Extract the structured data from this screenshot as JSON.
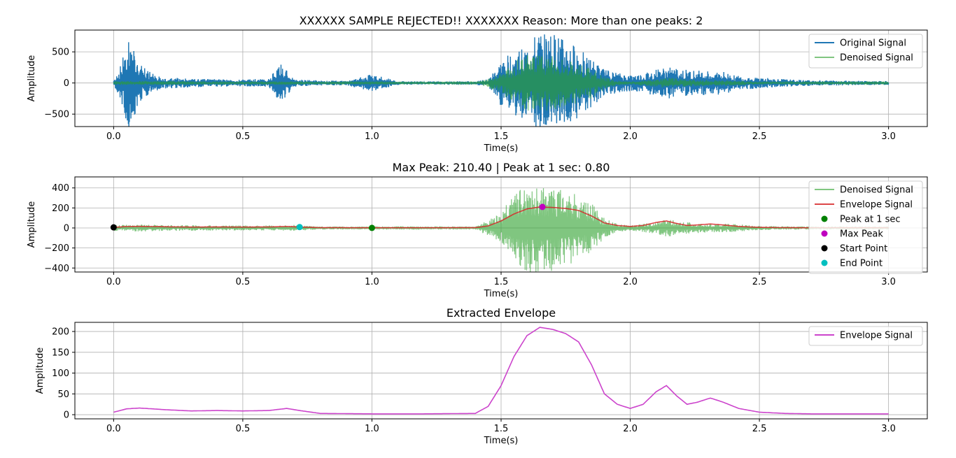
{
  "chart_data": [
    {
      "type": "line",
      "title": "XXXXXX SAMPLE REJECTED!! XXXXXXX Reason: More than one peaks: 2",
      "xlabel": "Time(s)",
      "ylabel": "Amplitude",
      "xlim": [
        -0.15,
        3.15
      ],
      "ylim": [
        -700,
        850
      ],
      "xticks": [
        0.0,
        0.5,
        1.0,
        1.5,
        2.0,
        2.5,
        3.0
      ],
      "xtick_labels": [
        "0.0",
        "0.5",
        "1.0",
        "1.5",
        "2.0",
        "2.5",
        "3.0"
      ],
      "yticks": [
        -500,
        0,
        500
      ],
      "ytick_labels": [
        "−500",
        "0",
        "500"
      ],
      "grid": true,
      "legend": "upper right",
      "series": [
        {
          "name": "Original Signal",
          "color": "#1f77b4",
          "style": "dense oscillation",
          "x": [
            0.0,
            0.02,
            0.04,
            0.06,
            0.08,
            0.1,
            0.15,
            0.2,
            0.3,
            0.4,
            0.5,
            0.6,
            0.65,
            0.7,
            0.8,
            0.9,
            1.0,
            1.1,
            1.2,
            1.3,
            1.4,
            1.45,
            1.5,
            1.55,
            1.6,
            1.65,
            1.7,
            1.75,
            1.8,
            1.85,
            1.9,
            1.95,
            2.0,
            2.05,
            2.1,
            2.15,
            2.2,
            2.25,
            2.3,
            2.35,
            2.4,
            2.45,
            2.5,
            2.6,
            2.7,
            2.8,
            2.9,
            3.0
          ],
          "envelope": [
            80,
            200,
            500,
            730,
            600,
            300,
            150,
            90,
            70,
            60,
            55,
            70,
            330,
            60,
            40,
            35,
            140,
            30,
            25,
            25,
            30,
            60,
            370,
            520,
            600,
            840,
            800,
            700,
            560,
            380,
            220,
            160,
            130,
            150,
            220,
            260,
            220,
            200,
            200,
            200,
            130,
            100,
            90,
            60,
            45,
            40,
            35,
            30
          ]
        },
        {
          "name": "Denoised Signal",
          "color": "#2ca02c",
          "style": "dense oscillation",
          "x": [
            0.0,
            0.1,
            0.2,
            0.4,
            0.6,
            0.7,
            0.8,
            1.0,
            1.2,
            1.4,
            1.5,
            1.55,
            1.6,
            1.65,
            1.7,
            1.75,
            1.8,
            1.85,
            1.9,
            1.95,
            2.0,
            2.1,
            2.15,
            2.2,
            2.3,
            2.4,
            2.5,
            2.7,
            2.9,
            3.0
          ],
          "envelope": [
            30,
            35,
            30,
            25,
            25,
            30,
            15,
            10,
            8,
            12,
            150,
            350,
            460,
            470,
            430,
            380,
            320,
            250,
            100,
            40,
            25,
            60,
            90,
            60,
            45,
            40,
            20,
            15,
            12,
            10
          ]
        }
      ]
    },
    {
      "type": "line",
      "title": "Max Peak: 210.40 | Peak at 1 sec: 0.80",
      "xlabel": "Time(s)",
      "ylabel": "Amplitude",
      "xlim": [
        -0.15,
        3.15
      ],
      "ylim": [
        -440,
        510
      ],
      "xticks": [
        0.0,
        0.5,
        1.0,
        1.5,
        2.0,
        2.5,
        3.0
      ],
      "xtick_labels": [
        "0.0",
        "0.5",
        "1.0",
        "1.5",
        "2.0",
        "2.5",
        "3.0"
      ],
      "yticks": [
        -400,
        -200,
        0,
        200,
        400
      ],
      "ytick_labels": [
        "−400",
        "−200",
        "0",
        "200",
        "400"
      ],
      "grid": true,
      "legend": "upper right",
      "series": [
        {
          "name": "Denoised Signal",
          "color": "#2ca02c",
          "style": "dense oscillation",
          "x": [
            0.0,
            0.1,
            0.2,
            0.4,
            0.6,
            0.7,
            0.8,
            1.0,
            1.2,
            1.4,
            1.5,
            1.55,
            1.6,
            1.65,
            1.7,
            1.75,
            1.8,
            1.85,
            1.9,
            1.95,
            2.0,
            2.1,
            2.15,
            2.2,
            2.3,
            2.4,
            2.5,
            2.7,
            2.9,
            3.0
          ],
          "envelope": [
            30,
            35,
            30,
            25,
            25,
            30,
            15,
            10,
            8,
            12,
            150,
            350,
            460,
            470,
            430,
            380,
            320,
            250,
            100,
            40,
            25,
            60,
            90,
            60,
            45,
            40,
            20,
            15,
            12,
            10
          ]
        },
        {
          "name": "Envelope Signal",
          "color": "#d62728",
          "style": "line",
          "x": [
            0.0,
            0.05,
            0.1,
            0.2,
            0.3,
            0.4,
            0.5,
            0.6,
            0.67,
            0.72,
            0.8,
            1.0,
            1.2,
            1.4,
            1.45,
            1.5,
            1.55,
            1.6,
            1.65,
            1.7,
            1.75,
            1.8,
            1.85,
            1.9,
            1.95,
            2.0,
            2.05,
            2.1,
            2.14,
            2.18,
            2.22,
            2.26,
            2.31,
            2.36,
            2.42,
            2.5,
            2.6,
            2.7,
            2.8,
            3.0
          ],
          "y": [
            6,
            14,
            16,
            12,
            9,
            10,
            9,
            10,
            15,
            10,
            3,
            2,
            2,
            3,
            20,
            70,
            140,
            190,
            210,
            205,
            195,
            175,
            120,
            50,
            25,
            15,
            25,
            55,
            70,
            45,
            25,
            30,
            40,
            30,
            15,
            6,
            3,
            2,
            2,
            2
          ]
        }
      ],
      "markers": [
        {
          "name": "Peak at 1 sec",
          "color": "#008000",
          "x": 1.0,
          "y": 0.8
        },
        {
          "name": "Max Peak",
          "color": "#bf00bf",
          "x": 1.66,
          "y": 210.4
        },
        {
          "name": "Start Point",
          "color": "#000000",
          "x": 0.0,
          "y": 6
        },
        {
          "name": "End Point",
          "color": "#00bfbf",
          "x": 0.72,
          "y": 9
        }
      ]
    },
    {
      "type": "line",
      "title": "Extracted Envelope",
      "xlabel": "Time(s)",
      "ylabel": "Amplitude",
      "xlim": [
        -0.15,
        3.15
      ],
      "ylim": [
        -10,
        222
      ],
      "xticks": [
        0.0,
        0.5,
        1.0,
        1.5,
        2.0,
        2.5,
        3.0
      ],
      "xtick_labels": [
        "0.0",
        "0.5",
        "1.0",
        "1.5",
        "2.0",
        "2.5",
        "3.0"
      ],
      "yticks": [
        0,
        50,
        100,
        150,
        200
      ],
      "ytick_labels": [
        "0",
        "50",
        "100",
        "150",
        "200"
      ],
      "grid": true,
      "legend": "upper right",
      "series": [
        {
          "name": "Envelope Signal",
          "color": "#cc44cc",
          "style": "line",
          "x": [
            0.0,
            0.05,
            0.1,
            0.2,
            0.3,
            0.4,
            0.5,
            0.6,
            0.67,
            0.72,
            0.8,
            1.0,
            1.2,
            1.4,
            1.45,
            1.5,
            1.55,
            1.6,
            1.65,
            1.7,
            1.75,
            1.8,
            1.85,
            1.9,
            1.95,
            2.0,
            2.05,
            2.1,
            2.14,
            2.18,
            2.22,
            2.26,
            2.31,
            2.36,
            2.42,
            2.5,
            2.6,
            2.7,
            2.8,
            3.0
          ],
          "y": [
            6,
            14,
            16,
            12,
            9,
            10,
            9,
            10,
            15,
            10,
            3,
            2,
            2,
            3,
            20,
            70,
            140,
            190,
            210,
            205,
            195,
            175,
            120,
            50,
            25,
            15,
            25,
            55,
            70,
            45,
            25,
            30,
            40,
            30,
            15,
            6,
            3,
            2,
            2,
            2
          ]
        }
      ]
    }
  ]
}
